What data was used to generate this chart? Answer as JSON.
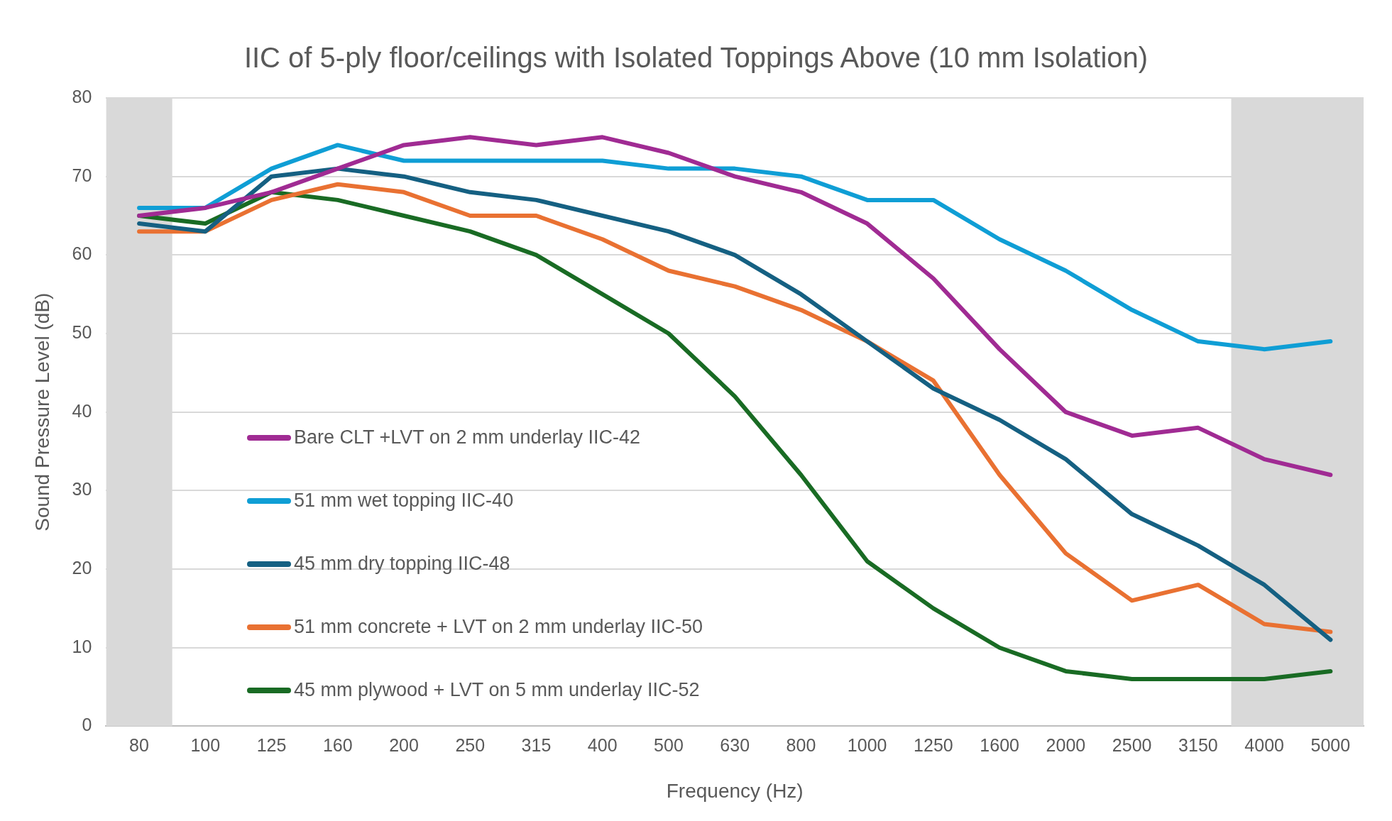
{
  "chart_data": {
    "type": "line",
    "title": "IIC of 5-ply floor/ceilings with Isolated Toppings Above (10 mm Isolation)",
    "xlabel": "Frequency (Hz)",
    "ylabel": "Sound Pressure Level (dB)",
    "categories": [
      "80",
      "100",
      "125",
      "160",
      "200",
      "250",
      "315",
      "400",
      "500",
      "630",
      "800",
      "1000",
      "1250",
      "1600",
      "2000",
      "2500",
      "3150",
      "4000",
      "5000"
    ],
    "series": [
      {
        "name": "Bare CLT +LVT on 2 mm underlay IIC-42",
        "color": "#a02b93",
        "values": [
          65,
          66,
          68,
          71,
          74,
          75,
          74,
          75,
          73,
          70,
          68,
          64,
          57,
          48,
          40,
          37,
          38,
          34,
          32
        ]
      },
      {
        "name": "51 mm wet topping IIC-40",
        "color": "#0f9ed5",
        "values": [
          66,
          66,
          71,
          74,
          72,
          72,
          72,
          72,
          71,
          71,
          70,
          67,
          67,
          62,
          58,
          53,
          49,
          48,
          49
        ]
      },
      {
        "name": "45 mm dry topping IIC-48",
        "color": "#156082",
        "values": [
          64,
          63,
          70,
          71,
          70,
          68,
          67,
          65,
          63,
          60,
          55,
          49,
          43,
          39,
          34,
          27,
          23,
          18,
          11
        ]
      },
      {
        "name": "51 mm concrete + LVT on 2 mm underlay IIC-50",
        "color": "#e97132",
        "values": [
          63,
          63,
          67,
          69,
          68,
          65,
          65,
          62,
          58,
          56,
          53,
          49,
          44,
          32,
          22,
          16,
          18,
          13,
          12
        ]
      },
      {
        "name": "45 mm plywood + LVT on 5 mm underlay IIC-52",
        "color": "#196b24",
        "values": [
          65,
          64,
          68,
          67,
          65,
          63,
          60,
          55,
          50,
          42,
          32,
          21,
          15,
          10,
          7,
          6,
          6,
          6,
          7
        ]
      }
    ],
    "ylim": [
      0,
      80
    ],
    "yticks": [
      0,
      10,
      20,
      30,
      40,
      50,
      60,
      70,
      80
    ],
    "grid": "y",
    "legend": "bottom left",
    "marker": "none",
    "line_style": "solid",
    "bands": [
      {
        "axis": "x",
        "from": "80",
        "to": "80",
        "color": "#d9d9d9"
      },
      {
        "axis": "x",
        "from": "4000",
        "to": "5000",
        "color": "#d9d9d9"
      }
    ]
  }
}
